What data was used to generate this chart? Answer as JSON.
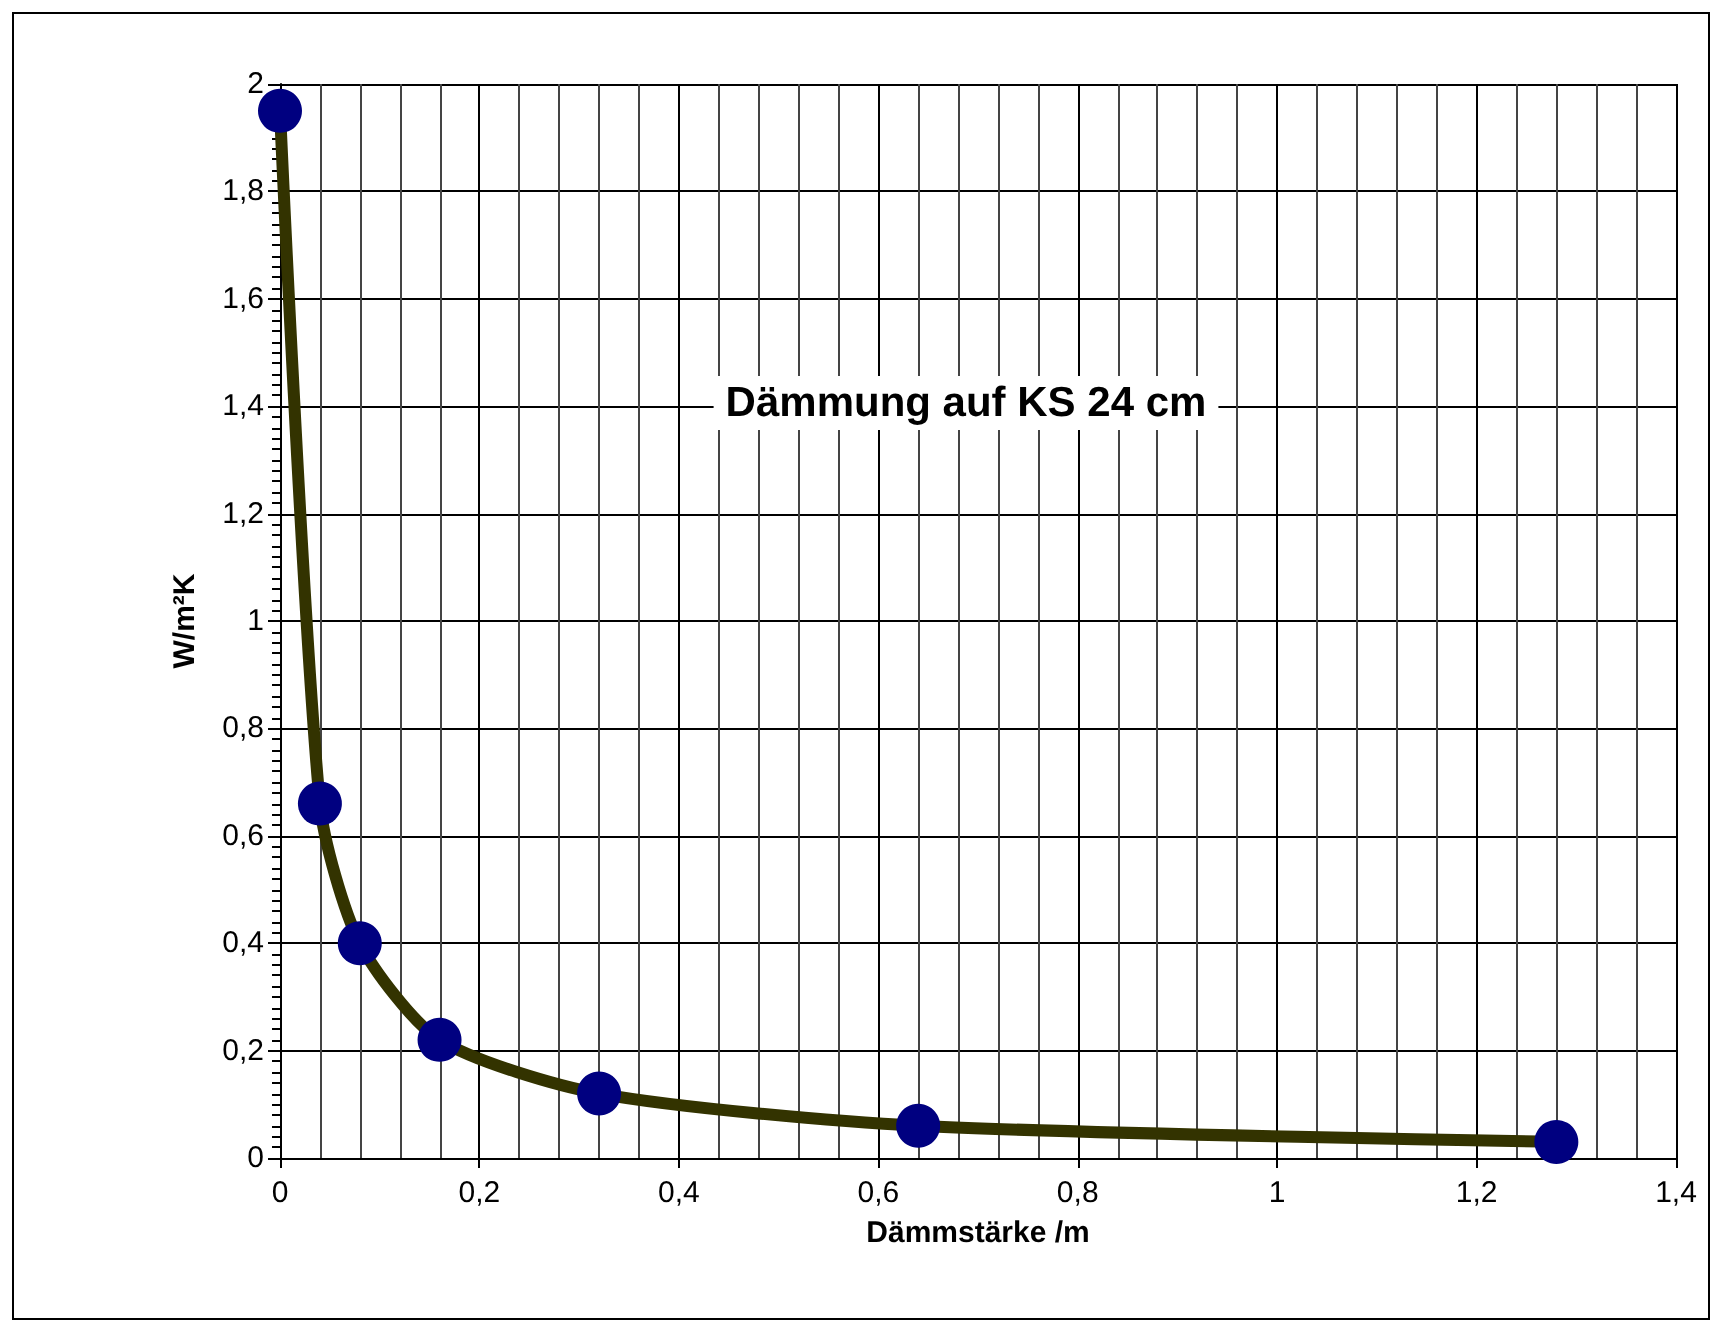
{
  "chart_data": {
    "type": "line",
    "title": "Dämmung auf KS 24 cm",
    "xlabel": "Dämmstärke /m",
    "ylabel": "W/m²K",
    "x": [
      0,
      0.04,
      0.08,
      0.16,
      0.32,
      0.64,
      1.28
    ],
    "series": [
      {
        "color": "#333300",
        "values": [
          1.95,
          0.66,
          0.4,
          0.22,
          0.12,
          0.06,
          0.03
        ]
      }
    ],
    "marker": "circle",
    "line_style": "solid",
    "xlim": [
      0,
      1.4
    ],
    "xticks": [
      0,
      {
        "value": 0.2,
        "label": "0,2"
      },
      {
        "value": 0.4,
        "label": "0,4"
      },
      {
        "value": 0.6,
        "label": "0,6"
      },
      {
        "value": 0.8,
        "label": "0,8"
      },
      1,
      {
        "value": 1.2,
        "label": "1,2"
      },
      {
        "value": 1.4,
        "label": "1,4"
      }
    ],
    "ylim": [
      0,
      2
    ],
    "yticks": [
      0,
      {
        "value": 0.2,
        "label": "0,2"
      },
      {
        "value": 0.4,
        "label": "0,4"
      },
      {
        "value": 0.6,
        "label": "0,6"
      },
      {
        "value": 0.8,
        "label": "0,8"
      },
      1,
      {
        "value": 1.2,
        "label": "1,2"
      },
      {
        "value": 1.4,
        "label": "1,4"
      },
      {
        "value": 1.6,
        "label": "1,6"
      },
      {
        "value": 1.8,
        "label": "1,8"
      },
      2
    ],
    "grid": true
  }
}
